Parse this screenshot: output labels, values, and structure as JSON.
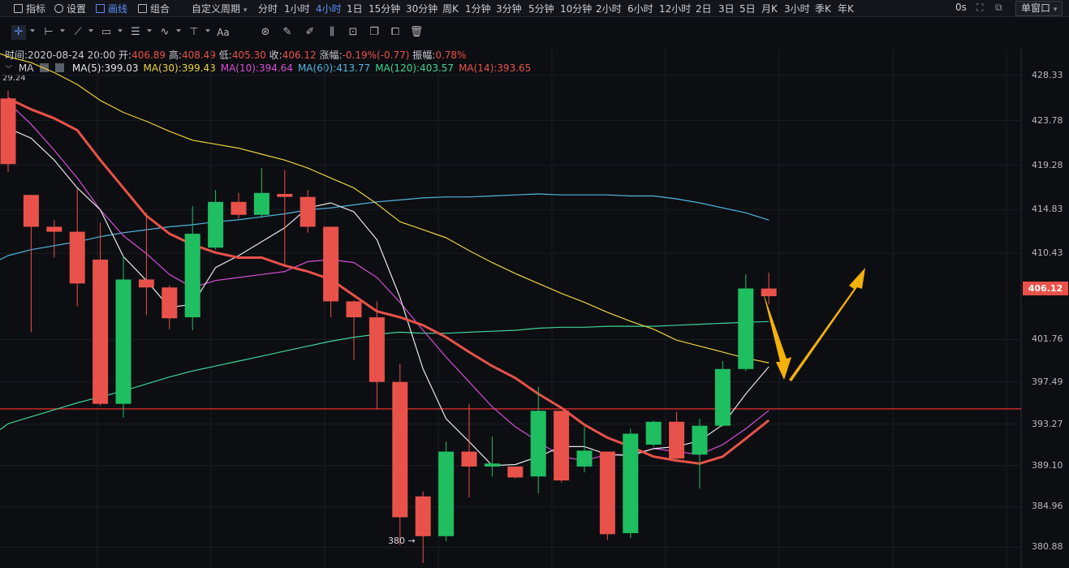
{
  "topbar": {
    "indicators": "指标",
    "settings": "设置",
    "drawing": "画线",
    "combo": "组合",
    "custom_period": "自定义周期",
    "periods": [
      "分时",
      "1小时",
      "4小时",
      "1日",
      "15分钟",
      "30分钟",
      "周K",
      "1分钟",
      "3分钟",
      "5分钟",
      "10分钟",
      "2小时",
      "6小时",
      "12小时",
      "2日",
      "3日",
      "5日",
      "月K",
      "3小时",
      "季K",
      "年K"
    ],
    "active_period": "4小时",
    "countdown": "0s",
    "window_mode": "单窗口"
  },
  "info": {
    "time_label": "时间:",
    "time": "2020-08-24 20:00",
    "open_label": "开:",
    "open": "406.89",
    "high_label": "高:",
    "high": "408.49",
    "low_label": "低:",
    "low": "405.30",
    "close_label": "收:",
    "close": "406.12",
    "change_label": "涨幅:",
    "change": "-0.19%(-0.77)",
    "amplitude_label": "振幅:",
    "amplitude": "0.78%"
  },
  "ma_legend": {
    "name": "MA",
    "items": [
      {
        "label": "MA(5):399.03",
        "color": "#e6e6e6"
      },
      {
        "label": "MA(30):399.43",
        "color": "#e8d33f"
      },
      {
        "label": "MA(10):394.64",
        "color": "#d44fd4"
      },
      {
        "label": "MA(60):413.77",
        "color": "#52b6e0"
      },
      {
        "label": "MA(120):403.57",
        "color": "#3fd494"
      },
      {
        "label": "MA(14):393.65",
        "color": "#e9524a"
      }
    ]
  },
  "chart_data": {
    "type": "candlestick",
    "y_ticks": [
      "428.33",
      "423.78",
      "419.28",
      "414.83",
      "410.43",
      "401.76",
      "397.49",
      "393.27",
      "389.10",
      "384.96",
      "380.88"
    ],
    "ylim": [
      378.8,
      431.0
    ],
    "corner_value": "29.24",
    "last_price": "406.12",
    "low_annotation": "380 →",
    "support_line": 394.8,
    "candles": [
      {
        "o": 426.0,
        "h": 426.8,
        "c": 419.4,
        "l": 418.6
      },
      {
        "o": 416.3,
        "h": 416.3,
        "c": 413.1,
        "l": 402.5
      },
      {
        "o": 413.1,
        "h": 413.8,
        "c": 412.6,
        "l": 410.0
      },
      {
        "o": 412.6,
        "h": 416.9,
        "c": 407.4,
        "l": 405.1
      },
      {
        "o": 409.8,
        "h": 413.5,
        "c": 395.3,
        "l": 395.1
      },
      {
        "o": 395.3,
        "h": 410.2,
        "c": 407.8,
        "l": 393.9
      },
      {
        "o": 407.8,
        "h": 414.5,
        "c": 407.0,
        "l": 404.2
      },
      {
        "o": 407.0,
        "h": 407.2,
        "c": 403.9,
        "l": 402.8
      },
      {
        "o": 404.0,
        "h": 415.2,
        "c": 412.4,
        "l": 402.7
      },
      {
        "o": 411.0,
        "h": 416.8,
        "c": 415.6,
        "l": 410.8
      },
      {
        "o": 415.6,
        "h": 416.5,
        "c": 414.3,
        "l": 413.9
      },
      {
        "o": 414.3,
        "h": 419.0,
        "c": 416.5,
        "l": 414.0
      },
      {
        "o": 416.4,
        "h": 418.8,
        "c": 416.1,
        "l": 409.2
      },
      {
        "o": 416.1,
        "h": 416.8,
        "c": 413.1,
        "l": 412.5
      },
      {
        "o": 413.1,
        "h": 413.1,
        "c": 405.6,
        "l": 404.0
      },
      {
        "o": 405.6,
        "h": 405.7,
        "c": 404.0,
        "l": 399.7
      },
      {
        "o": 404.0,
        "h": 405.6,
        "c": 397.5,
        "l": 394.8
      },
      {
        "o": 397.5,
        "h": 399.3,
        "c": 383.9,
        "l": 381.1
      },
      {
        "o": 386.0,
        "h": 386.5,
        "c": 382.0,
        "l": 379.3
      },
      {
        "o": 382.0,
        "h": 391.5,
        "c": 390.5,
        "l": 381.5
      },
      {
        "o": 390.5,
        "h": 395.3,
        "c": 389.0,
        "l": 385.9
      },
      {
        "o": 389.0,
        "h": 392.0,
        "c": 389.3,
        "l": 388.0
      },
      {
        "o": 389.0,
        "h": 389.0,
        "c": 387.9,
        "l": 387.8
      },
      {
        "o": 388.0,
        "h": 397.0,
        "c": 394.6,
        "l": 386.3
      },
      {
        "o": 394.6,
        "h": 394.6,
        "c": 387.6,
        "l": 387.4
      },
      {
        "o": 389.0,
        "h": 393.0,
        "c": 390.6,
        "l": 388.4
      },
      {
        "o": 390.5,
        "h": 390.5,
        "c": 382.2,
        "l": 381.6
      },
      {
        "o": 382.3,
        "h": 392.8,
        "c": 392.3,
        "l": 381.8
      },
      {
        "o": 391.2,
        "h": 393.6,
        "c": 393.5,
        "l": 391.0
      },
      {
        "o": 393.5,
        "h": 394.5,
        "c": 389.8,
        "l": 389.6
      },
      {
        "o": 390.2,
        "h": 393.8,
        "c": 393.1,
        "l": 386.8
      },
      {
        "o": 393.1,
        "h": 399.6,
        "c": 398.8,
        "l": 393.0
      },
      {
        "o": 398.8,
        "h": 408.3,
        "c": 406.9,
        "l": 398.6
      },
      {
        "o": 406.89,
        "h": 408.49,
        "c": 406.12,
        "l": 405.3
      }
    ],
    "ma_series": [
      {
        "name": "MA(5)",
        "color": "#e6e6e6",
        "values": [
          423.0,
          422.0,
          419.8,
          417.0,
          414.8,
          410.1,
          407.7,
          405.0,
          405.3,
          409.0,
          410.2,
          411.6,
          413.0,
          415.0,
          415.5,
          414.6,
          411.8,
          406.0,
          398.8,
          393.8,
          391.5,
          389.1,
          389.2,
          390.0,
          391.0,
          391.0,
          390.2,
          390.1,
          390.8,
          391.0,
          391.6,
          393.2,
          396.3,
          399.03
        ]
      },
      {
        "name": "MA(10)",
        "color": "#d44fd4",
        "values": [
          425.6,
          423.4,
          420.8,
          418.0,
          414.8,
          412.2,
          410.4,
          408.3,
          407.0,
          407.7,
          408.0,
          408.3,
          408.6,
          409.6,
          409.8,
          409.5,
          408.0,
          405.5,
          402.7,
          400.0,
          397.5,
          395.0,
          393.0,
          391.5,
          390.0,
          389.6,
          390.2,
          390.2,
          390.8,
          390.5,
          390.2,
          391.2,
          392.8,
          394.64
        ]
      },
      {
        "name": "MA(14)",
        "color": "#e9524a",
        "values": [
          426.0,
          424.9,
          424.0,
          422.8,
          419.8,
          417.0,
          414.2,
          412.4,
          411.3,
          410.5,
          410.0,
          410.0,
          409.2,
          408.6,
          407.8,
          406.2,
          404.6,
          404.0,
          403.2,
          402.0,
          400.5,
          399.1,
          397.9,
          396.3,
          394.9,
          393.2,
          391.9,
          391.0,
          390.0,
          389.6,
          389.3,
          390.0,
          391.8,
          393.65
        ]
      },
      {
        "name": "MA(30)",
        "color": "#e8d33f",
        "values": [
          430.2,
          429.6,
          428.6,
          427.4,
          425.8,
          424.6,
          423.7,
          422.7,
          421.8,
          421.4,
          421.0,
          420.4,
          419.8,
          419.0,
          418.0,
          417.0,
          415.4,
          413.6,
          412.8,
          412.0,
          410.7,
          409.5,
          408.4,
          407.4,
          406.4,
          405.5,
          404.5,
          403.6,
          402.8,
          401.7,
          401.1,
          400.5,
          399.9,
          399.43
        ]
      },
      {
        "name": "MA(60)",
        "color": "#52b6e0",
        "values": [
          410.2,
          410.8,
          411.2,
          411.6,
          412.1,
          412.5,
          412.8,
          413.1,
          413.3,
          413.6,
          413.8,
          414.1,
          414.4,
          414.8,
          415.0,
          415.3,
          415.6,
          415.8,
          416.0,
          416.1,
          416.1,
          416.2,
          416.3,
          416.4,
          416.3,
          416.3,
          416.3,
          416.2,
          416.2,
          415.9,
          415.5,
          415.0,
          414.5,
          413.77
        ]
      },
      {
        "name": "MA(120)",
        "color": "#3fd494",
        "values": [
          393.3,
          394.0,
          394.7,
          395.4,
          396.0,
          396.6,
          397.3,
          398.0,
          398.6,
          399.1,
          399.6,
          400.1,
          400.6,
          401.1,
          401.6,
          402.0,
          402.3,
          402.5,
          402.4,
          402.4,
          402.5,
          402.6,
          402.7,
          402.9,
          403.0,
          403.0,
          403.1,
          403.1,
          403.1,
          403.2,
          403.3,
          403.4,
          403.5,
          403.57
        ]
      }
    ]
  }
}
